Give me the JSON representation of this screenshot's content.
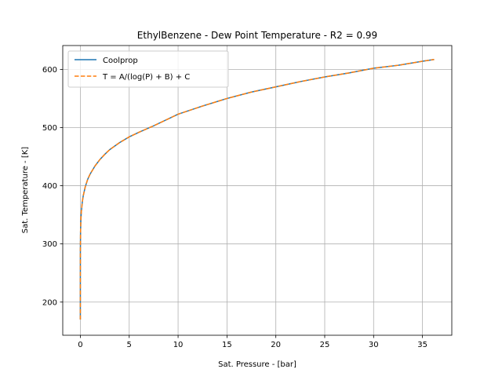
{
  "chart_data": {
    "type": "line",
    "title": "EthylBenzene - Dew Point Temperature - R2 = 0.99",
    "xlabel": "Sat. Pressure - [bar]",
    "ylabel": "Sat. Temperature - [K]",
    "xlim": [
      -1.8,
      38.0
    ],
    "ylim": [
      143,
      641
    ],
    "xticks": [
      0,
      5,
      10,
      15,
      20,
      25,
      30,
      35
    ],
    "yticks": [
      200,
      300,
      400,
      500,
      600
    ],
    "grid": true,
    "legend_position": "top-left",
    "series": [
      {
        "name": "Coolprop",
        "color": "#1f77b4",
        "style": "solid",
        "x": [
          0.0,
          0.001,
          0.005,
          0.02,
          0.05,
          0.1,
          0.2,
          0.3,
          0.5,
          0.75,
          1.0,
          1.5,
          2.0,
          2.5,
          3.0,
          4.0,
          5.0,
          6.0,
          7.5,
          10.0,
          12.5,
          15.0,
          17.5,
          20.0,
          22.5,
          25.0,
          27.5,
          30.0,
          32.5,
          35.0,
          36.2
        ],
        "y": [
          170,
          250,
          290,
          320,
          340,
          355,
          372,
          383,
          398,
          411,
          420,
          434,
          445,
          454,
          462,
          474,
          484,
          492,
          503,
          523,
          537,
          550,
          561,
          570,
          579,
          587,
          594,
          602,
          607,
          614,
          617
        ]
      },
      {
        "name": "T = A/(log(P) + B) + C",
        "color": "#ff7f0e",
        "style": "dashed",
        "x": [
          0.0,
          0.001,
          0.005,
          0.02,
          0.05,
          0.1,
          0.2,
          0.3,
          0.5,
          0.75,
          1.0,
          1.5,
          2.0,
          2.5,
          3.0,
          4.0,
          5.0,
          6.0,
          7.5,
          10.0,
          12.5,
          15.0,
          17.5,
          20.0,
          22.5,
          25.0,
          27.5,
          30.0,
          32.5,
          35.0,
          36.2
        ],
        "y": [
          170,
          250,
          290,
          320,
          340,
          355,
          372,
          383,
          398,
          411,
          420,
          434,
          445,
          454,
          462,
          474,
          484,
          492,
          503,
          523,
          537,
          550,
          561,
          570,
          579,
          587,
          594,
          602,
          607,
          614,
          617
        ]
      }
    ]
  }
}
